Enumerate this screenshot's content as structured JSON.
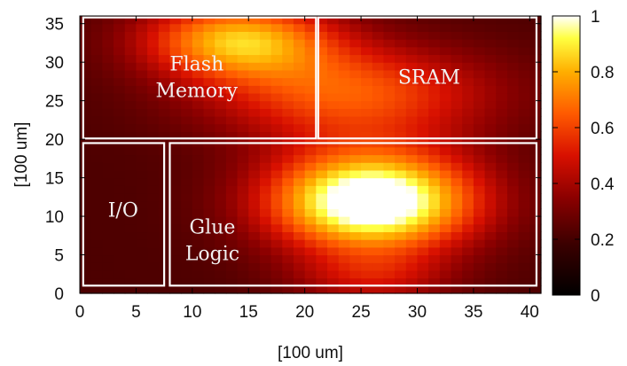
{
  "chart_data": {
    "type": "heatmap",
    "title": "",
    "xlabel": "[100 um]",
    "ylabel": "[100 um]",
    "xlim": [
      0,
      41
    ],
    "ylim": [
      0,
      36
    ],
    "x_ticks": [
      0,
      5,
      10,
      15,
      20,
      25,
      30,
      35,
      40
    ],
    "y_ticks": [
      0,
      5,
      10,
      15,
      20,
      25,
      30,
      35
    ],
    "colorbar": {
      "range": [
        0,
        1
      ],
      "ticks": [
        "0",
        "0.2",
        "0.4",
        "0.6",
        "0.8",
        "1"
      ],
      "colormap": "black-red-yellow-white"
    },
    "hotspots": [
      {
        "x": 26,
        "y": 12,
        "sx": 6.5,
        "sy": 4.6,
        "amp": 0.93
      },
      {
        "x": 14,
        "y": 33,
        "sx": 6.0,
        "sy": 3.5,
        "amp": 0.58
      },
      {
        "x": 24,
        "y": 26,
        "sx": 9.0,
        "sy": 4.5,
        "amp": 0.42
      },
      {
        "x": 26,
        "y": 2,
        "sx": 5.0,
        "sy": 2.5,
        "amp": 0.22
      }
    ],
    "baseline": 0.22,
    "regions": [
      {
        "label_lines": [
          "Flash",
          "Memory"
        ],
        "x0": 0.3,
        "x1": 21.0,
        "y0": 20.1,
        "y1": 35.8
      },
      {
        "label_lines": [
          "SRAM"
        ],
        "x0": 21.2,
        "x1": 40.6,
        "y0": 20.1,
        "y1": 35.8
      },
      {
        "label_lines": [
          "I/O"
        ],
        "x0": 0.3,
        "x1": 7.5,
        "y0": 1.0,
        "y1": 19.5
      },
      {
        "label_lines": [
          "Glue",
          "Logic"
        ],
        "x0": 8.0,
        "x1": 40.6,
        "y0": 1.0,
        "y1": 19.5
      }
    ],
    "grid": false
  }
}
